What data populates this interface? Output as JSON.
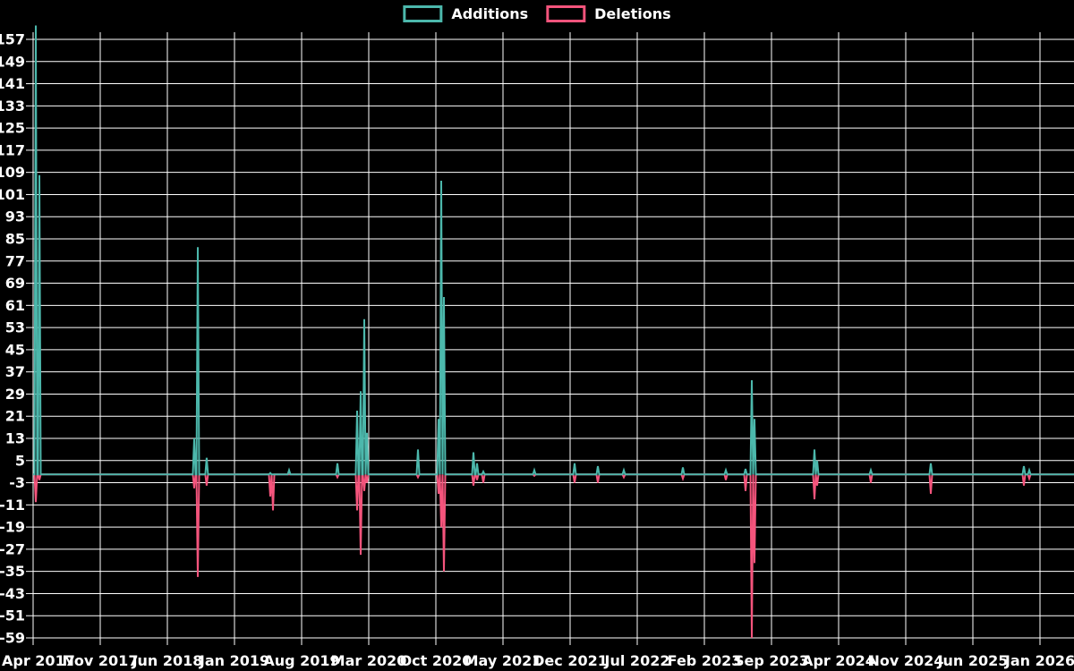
{
  "legend": {
    "items": [
      {
        "label": "Additions",
        "color": "#4cb8ac"
      },
      {
        "label": "Deletions",
        "color": "#f4547c"
      }
    ]
  },
  "colors": {
    "background": "#000000",
    "grid": "#ffffff",
    "text": "#ffffff",
    "additions": "#4cb8ac",
    "deletions": "#f4547c"
  },
  "chart_data": {
    "type": "line",
    "title": "",
    "xlabel": "",
    "ylabel": "",
    "grid": true,
    "legend_position": "top-center",
    "ylim": [
      -59,
      161
    ],
    "y_tick_step": 8,
    "y_ticks": [
      157,
      149,
      141,
      133,
      125,
      117,
      109,
      101,
      93,
      85,
      77,
      69,
      61,
      53,
      45,
      37,
      29,
      21,
      13,
      5,
      -3,
      -11,
      -19,
      -27,
      -35,
      -43,
      -51,
      -59
    ],
    "x_tick_labels": [
      "Apr 2017",
      "Nov 2017",
      "Jun 2018",
      "Jan 2019",
      "Aug 2019",
      "Mar 2020",
      "Oct 2020",
      "May 2021",
      "Dec 2021",
      "Jul 2022",
      "Feb 2023",
      "Sep 2023",
      "Apr 2024",
      "Nov 2024",
      "Jun 2025",
      "Jan 2026"
    ],
    "x_tick_interval_months": 7,
    "baseline": 0,
    "series": [
      {
        "name": "Additions",
        "color": "#4cb8ac",
        "spikes": [
          [
            0.28,
            162
          ],
          [
            0.65,
            108
          ],
          [
            16.8,
            13
          ],
          [
            17.17,
            82
          ],
          [
            18.1,
            6
          ],
          [
            24.73,
            0.5
          ],
          [
            26.69,
            1.5
          ],
          [
            31.73,
            4
          ],
          [
            33.79,
            23
          ],
          [
            34.16,
            30
          ],
          [
            34.53,
            56
          ],
          [
            34.81,
            15
          ],
          [
            40.13,
            9
          ],
          [
            42.28,
            20
          ],
          [
            42.56,
            106
          ],
          [
            42.84,
            64
          ],
          [
            45.92,
            8
          ],
          [
            46.29,
            4
          ],
          [
            46.95,
            1
          ],
          [
            52.27,
            1.5
          ],
          [
            56.47,
            4
          ],
          [
            58.89,
            3
          ],
          [
            61.6,
            1.5
          ],
          [
            67.76,
            2.5
          ],
          [
            72.24,
            1.5
          ],
          [
            74.29,
            2
          ],
          [
            74.95,
            34
          ],
          [
            75.23,
            20
          ],
          [
            81.48,
            9
          ],
          [
            81.76,
            5
          ],
          [
            87.36,
            1.5
          ],
          [
            93.61,
            4
          ],
          [
            103.32,
            3
          ],
          [
            103.88,
            1.5
          ]
        ]
      },
      {
        "name": "Deletions",
        "color": "#f4547c",
        "spikes": [
          [
            0.28,
            -10
          ],
          [
            0.65,
            -2
          ],
          [
            16.8,
            -5
          ],
          [
            17.17,
            -37
          ],
          [
            18.1,
            -4
          ],
          [
            24.73,
            -8
          ],
          [
            25.01,
            -13
          ],
          [
            31.73,
            -1
          ],
          [
            33.79,
            -13
          ],
          [
            34.16,
            -29
          ],
          [
            34.53,
            -6
          ],
          [
            34.81,
            -3
          ],
          [
            40.13,
            -1
          ],
          [
            42.28,
            -7
          ],
          [
            42.56,
            -19
          ],
          [
            42.84,
            -35
          ],
          [
            45.92,
            -4
          ],
          [
            46.29,
            -2
          ],
          [
            46.95,
            -3
          ],
          [
            52.27,
            -0.5
          ],
          [
            56.47,
            -3
          ],
          [
            58.89,
            -3
          ],
          [
            61.6,
            -1
          ],
          [
            67.76,
            -1.5
          ],
          [
            72.24,
            -2
          ],
          [
            74.29,
            -6
          ],
          [
            74.95,
            -59
          ],
          [
            75.23,
            -32
          ],
          [
            81.48,
            -9
          ],
          [
            81.76,
            -4
          ],
          [
            87.36,
            -3
          ],
          [
            93.61,
            -7
          ],
          [
            103.32,
            -4
          ],
          [
            103.88,
            -1.5
          ]
        ]
      }
    ]
  }
}
